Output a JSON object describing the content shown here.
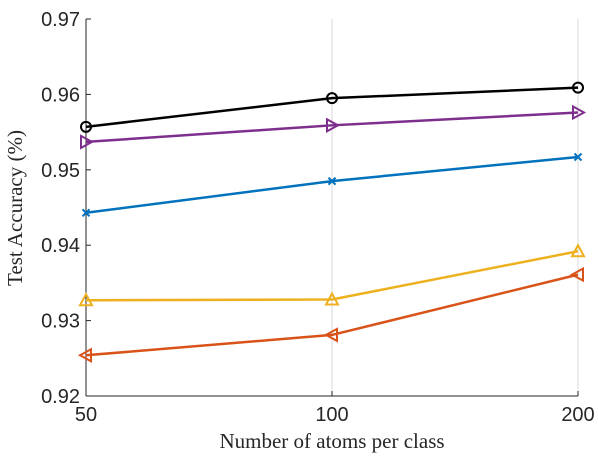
{
  "chart_data": {
    "type": "line",
    "title": "",
    "xlabel": "Number of atoms per class",
    "ylabel": "Test Accuracy (%)",
    "x": [
      50,
      100,
      200
    ],
    "xlim": [
      50,
      200
    ],
    "ylim": [
      0.92,
      0.97
    ],
    "xticks": [
      50,
      100,
      200
    ],
    "xtick_labels": [
      "50",
      "100",
      "200"
    ],
    "yticks": [
      0.92,
      0.93,
      0.94,
      0.95,
      0.96,
      0.97
    ],
    "ytick_labels": [
      "0.92",
      "0.93",
      "0.94",
      "0.95",
      "0.96",
      "0.97"
    ],
    "x_scale": "log",
    "grid": "vertical",
    "legend": "none",
    "series": [
      {
        "color": "#000000",
        "marker": "circle",
        "values": [
          0.9557,
          0.9595,
          0.9609
        ]
      },
      {
        "color": "#7E2F8E",
        "marker": "triangle-right",
        "values": [
          0.9537,
          0.9559,
          0.9576
        ]
      },
      {
        "color": "#0072BD",
        "marker": "x",
        "values": [
          0.9443,
          0.9485,
          0.9517
        ]
      },
      {
        "color": "#EDB120",
        "marker": "triangle-up",
        "values": [
          0.9327,
          0.9328,
          0.9392
        ]
      },
      {
        "color": "#D95319",
        "marker": "triangle-left",
        "values": [
          0.9254,
          0.9281,
          0.9361
        ]
      }
    ]
  }
}
